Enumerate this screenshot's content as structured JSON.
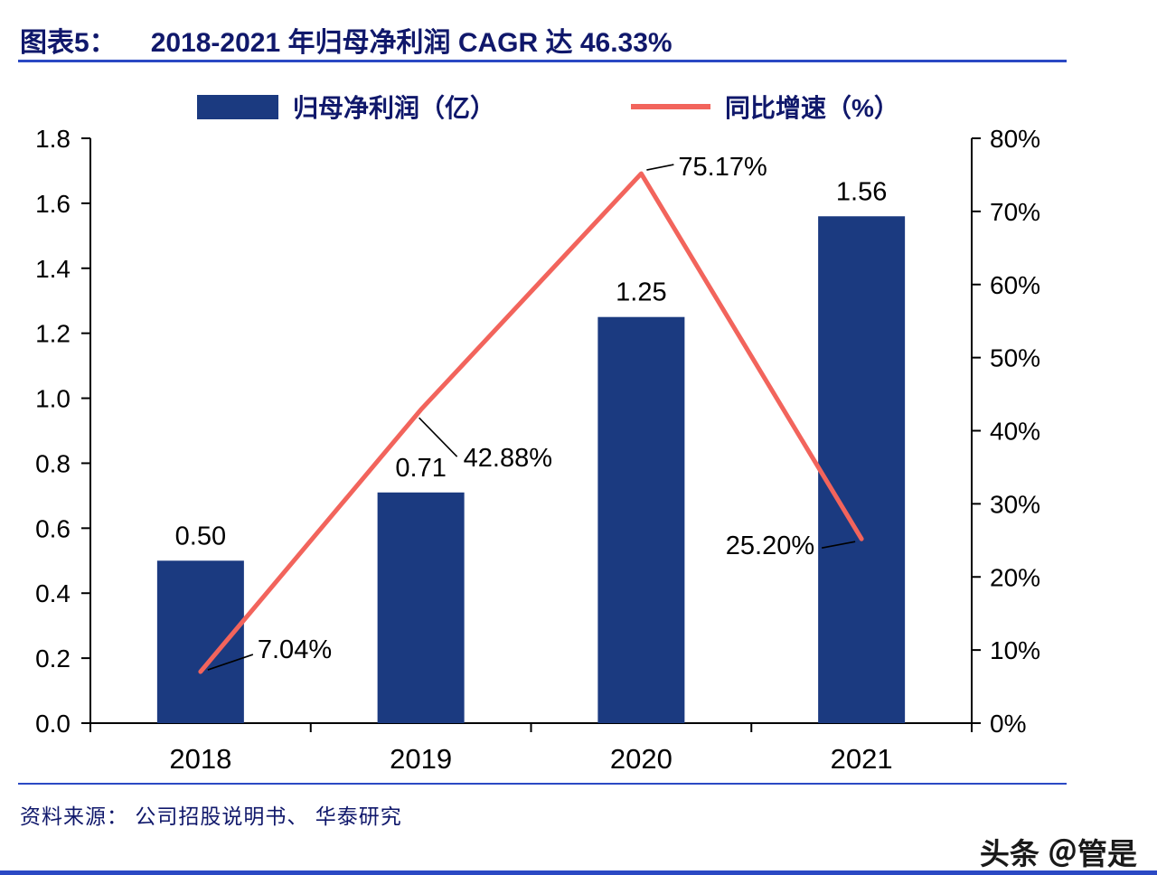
{
  "header": {
    "label": "图表5：",
    "title": "2018-2021 年归母净利润 CAGR 达 46.33%"
  },
  "legend": {
    "bar_label": "归母净利润（亿）",
    "line_label": "同比增速（%）"
  },
  "chart_data": {
    "type": "bar+line",
    "title": "2018-2021 年归母净利润 CAGR 达 46.33%",
    "categories": [
      "2018",
      "2019",
      "2020",
      "2021"
    ],
    "series": [
      {
        "name": "归母净利润（亿）",
        "type": "bar",
        "axis": "left",
        "color": "#1B3A80",
        "values": [
          0.5,
          0.71,
          1.25,
          1.56
        ],
        "labels": [
          "0.50",
          "0.71",
          "1.25",
          "1.56"
        ]
      },
      {
        "name": "同比增速（%）",
        "type": "line",
        "axis": "right",
        "color": "#F2645C",
        "values": [
          7.04,
          42.88,
          75.17,
          25.2
        ],
        "labels": [
          "7.04%",
          "42.88%",
          "75.17%",
          "25.20%"
        ]
      }
    ],
    "left_axis": {
      "min": 0,
      "max": 1.8,
      "step": 0.2,
      "tick_labels": [
        "0.0",
        "0.2",
        "0.4",
        "0.6",
        "0.8",
        "1.0",
        "1.2",
        "1.4",
        "1.6",
        "1.8"
      ]
    },
    "right_axis": {
      "min": 0,
      "max": 80,
      "step": 10,
      "tick_labels": [
        "0%",
        "10%",
        "20%",
        "30%",
        "40%",
        "50%",
        "60%",
        "70%",
        "80%"
      ]
    },
    "grid": false,
    "legend_position": "top"
  },
  "footer": {
    "source": "资料来源： 公司招股说明书、 华泰研究",
    "watermark": "头条 ＠管是"
  },
  "colors": {
    "title": "#10186B",
    "rule": "#2B49C4",
    "bar": "#1B3A80",
    "line": "#F2645C",
    "axis": "#000000",
    "label": "#000000",
    "watermark": "#1A1A1A"
  }
}
